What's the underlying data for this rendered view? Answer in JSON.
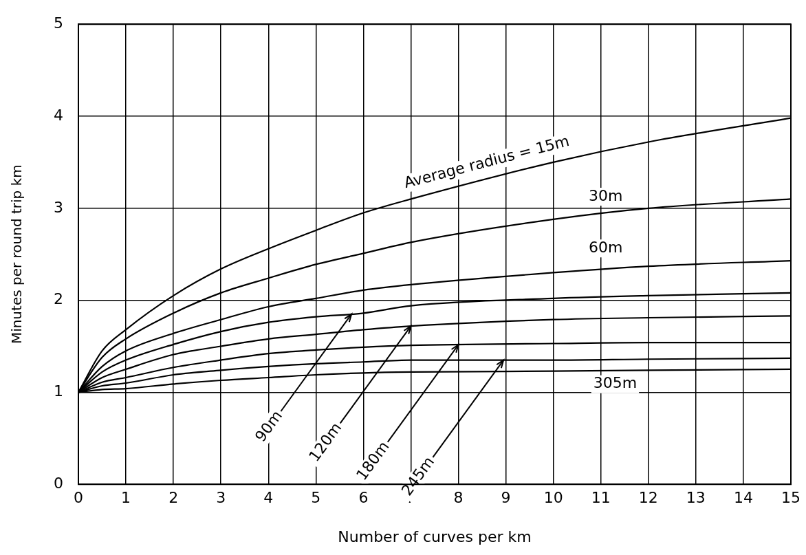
{
  "chart_data": {
    "type": "line",
    "xlabel": "Number of curves per km",
    "ylabel": "Minutes per round trip km",
    "x": [
      0,
      0.5,
      1,
      2,
      3,
      4,
      5,
      6,
      7,
      10,
      12,
      15
    ],
    "series": [
      {
        "name": "Average radius = 15m",
        "color": "#000000",
        "values": [
          1,
          1.45,
          1.68,
          2.05,
          2.34,
          2.56,
          2.76,
          2.95,
          3.1,
          3.5,
          3.72,
          3.98
        ]
      },
      {
        "name": "30m",
        "color": "#000000",
        "values": [
          1,
          1.38,
          1.58,
          1.86,
          2.08,
          2.24,
          2.39,
          2.51,
          2.63,
          2.88,
          3.0,
          3.1
        ]
      },
      {
        "name": "60m",
        "color": "#000000",
        "values": [
          1,
          1.28,
          1.45,
          1.64,
          1.79,
          1.93,
          2.02,
          2.11,
          2.17,
          2.3,
          2.37,
          2.43
        ]
      },
      {
        "name": "90m",
        "color": "#000000",
        "values": [
          1,
          1.22,
          1.35,
          1.52,
          1.66,
          1.76,
          1.82,
          1.86,
          1.94,
          2.02,
          2.05,
          2.08
        ]
      },
      {
        "name": "120m",
        "color": "#000000",
        "values": [
          1,
          1.16,
          1.25,
          1.41,
          1.5,
          1.58,
          1.63,
          1.68,
          1.72,
          1.79,
          1.81,
          1.83
        ]
      },
      {
        "name": "180m",
        "color": "#000000",
        "values": [
          1,
          1.11,
          1.16,
          1.27,
          1.35,
          1.42,
          1.46,
          1.49,
          1.51,
          1.53,
          1.54,
          1.54
        ]
      },
      {
        "name": "245m",
        "color": "#000000",
        "values": [
          1,
          1.07,
          1.1,
          1.19,
          1.24,
          1.28,
          1.31,
          1.33,
          1.35,
          1.35,
          1.36,
          1.37
        ]
      },
      {
        "name": "305m",
        "color": "#000000",
        "values": [
          1,
          1.03,
          1.04,
          1.09,
          1.13,
          1.16,
          1.19,
          1.21,
          1.22,
          1.23,
          1.24,
          1.25
        ]
      }
    ],
    "xlim": [
      0,
      15
    ],
    "xticks": [
      0,
      1,
      2,
      3,
      4,
      5,
      6,
      7,
      8,
      9,
      10,
      11,
      12,
      13,
      14,
      15
    ],
    "ylim": [
      0,
      5
    ],
    "yticks": [
      0,
      1,
      2,
      3,
      4,
      5
    ],
    "grid": true,
    "legend": false,
    "marker": "none",
    "line_style": "solid"
  }
}
